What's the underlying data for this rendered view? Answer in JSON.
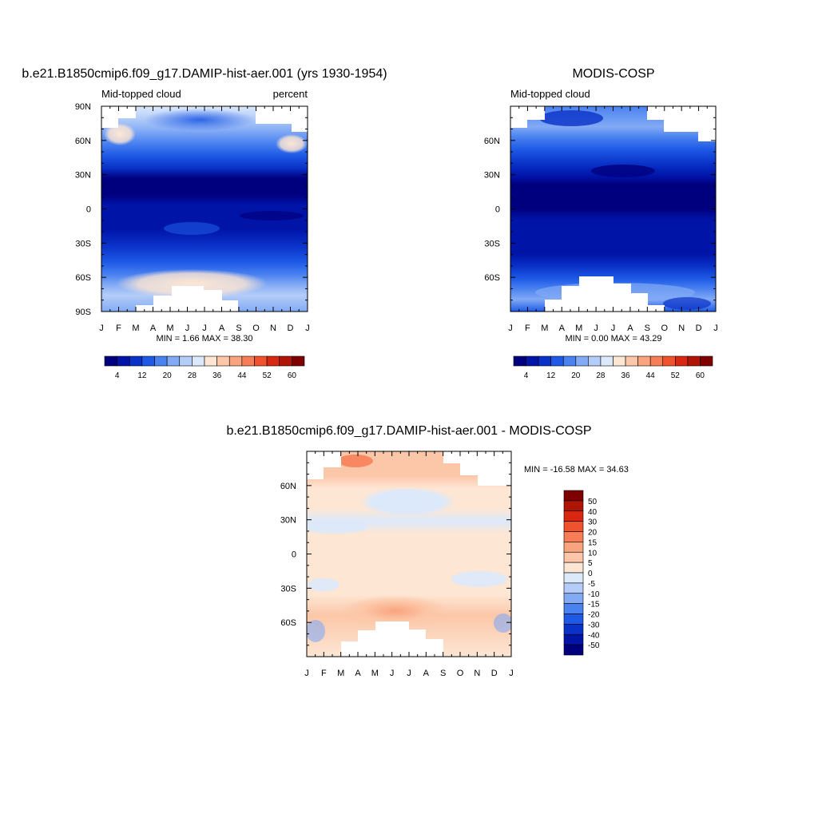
{
  "chart_data": [
    {
      "id": "model",
      "type": "heatmap",
      "title": "b.e21.B1850cmip6.f09_g17.DAMIP-hist-aer.001 (yrs 1930-1954)",
      "subtitle_left": "Mid-topped cloud",
      "subtitle_right": "percent",
      "x_ticks": [
        "J",
        "F",
        "M",
        "A",
        "M",
        "J",
        "J",
        "A",
        "S",
        "O",
        "N",
        "D",
        "J"
      ],
      "y_ticks": [
        "90N",
        "60N",
        "30N",
        "0",
        "30S",
        "60S",
        "90S"
      ],
      "y_range": [
        -90,
        90
      ],
      "min_max_label": "MIN =   1.66 MAX =  38.30",
      "min": 1.66,
      "max": 38.3,
      "colorbar_labels": [
        "4",
        "12",
        "20",
        "28",
        "36",
        "44",
        "52",
        "60"
      ]
    },
    {
      "id": "obs",
      "type": "heatmap",
      "title": "MODIS-COSP",
      "subtitle_left": "Mid-topped cloud",
      "x_ticks": [
        "J",
        "F",
        "M",
        "A",
        "M",
        "J",
        "J",
        "A",
        "S",
        "O",
        "N",
        "D",
        "J"
      ],
      "y_ticks": [
        "60N",
        "30N",
        "0",
        "30S",
        "60S"
      ],
      "y_range": [
        -90,
        90
      ],
      "min_max_label": "MIN =   0.00 MAX =  43.29",
      "min": 0.0,
      "max": 43.29,
      "colorbar_labels": [
        "4",
        "12",
        "20",
        "28",
        "36",
        "44",
        "52",
        "60"
      ]
    },
    {
      "id": "diff",
      "type": "heatmap",
      "title": "b.e21.B1850cmip6.f09_g17.DAMIP-hist-aer.001 - MODIS-COSP",
      "x_ticks": [
        "J",
        "F",
        "M",
        "A",
        "M",
        "J",
        "J",
        "A",
        "S",
        "O",
        "N",
        "D",
        "J"
      ],
      "y_ticks": [
        "60N",
        "30N",
        "0",
        "30S",
        "60S"
      ],
      "y_range": [
        -90,
        90
      ],
      "min_max_label": "MIN = -16.58 MAX =  34.63",
      "min": -16.58,
      "max": 34.63,
      "colorbar_labels": [
        "50",
        "40",
        "30",
        "20",
        "15",
        "10",
        "5",
        "0",
        "-5",
        "-10",
        "-15",
        "-20",
        "-30",
        "-40",
        "-50"
      ]
    }
  ],
  "colors": {
    "abs_scale": [
      "#00007f",
      "#0014a8",
      "#0a32c8",
      "#1e5ae6",
      "#4a82f0",
      "#82aaf5",
      "#b4cdf8",
      "#dce9fb",
      "#fde6d4",
      "#fcc7a8",
      "#f9a47e",
      "#f67d55",
      "#f0522d",
      "#d92812",
      "#b01405",
      "#7f0000"
    ],
    "diff_scale": [
      "#7f0000",
      "#b01405",
      "#d92812",
      "#f0522d",
      "#f67d55",
      "#f9a47e",
      "#fcc7a8",
      "#fde6d4",
      "#dce9fb",
      "#b4cdf8",
      "#82aaf5",
      "#4a82f0",
      "#1e5ae6",
      "#0a32c8",
      "#0014a8",
      "#00007f"
    ]
  }
}
